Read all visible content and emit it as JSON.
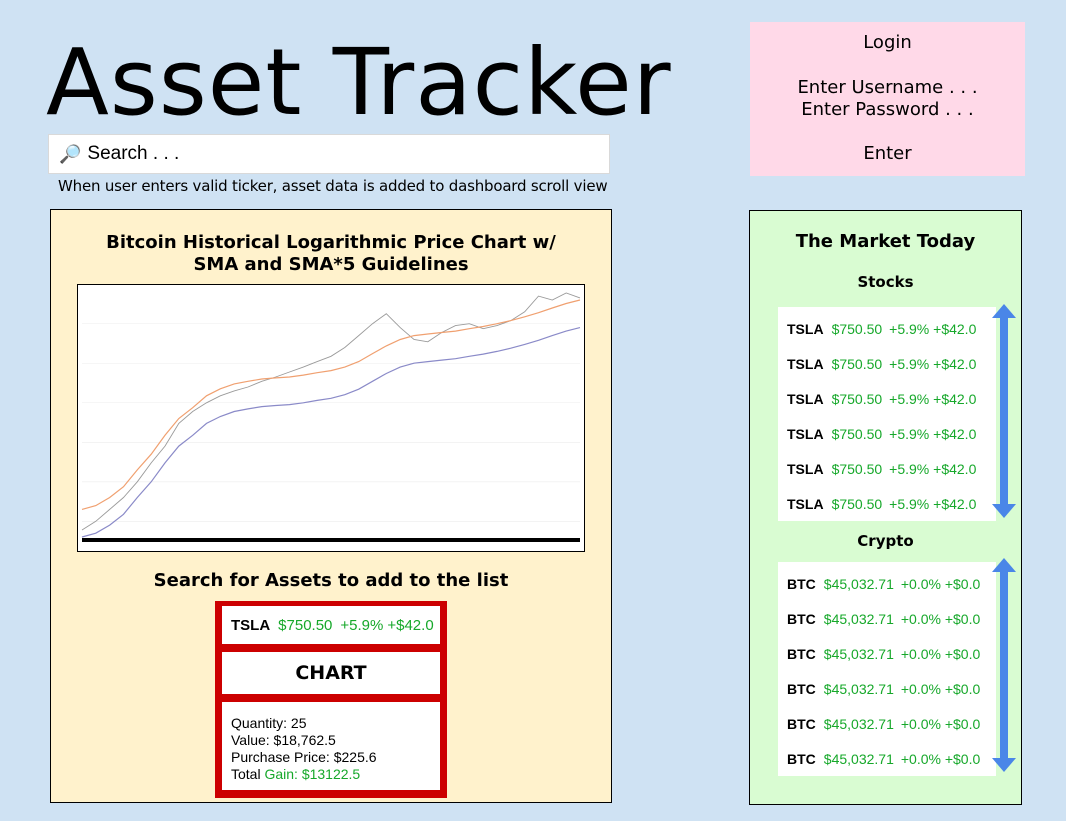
{
  "app": {
    "title": "Asset Tracker"
  },
  "search": {
    "icon": "magnifier-icon",
    "placeholder": "Search . . .",
    "note": "When user enters valid ticker, asset data is added to dashboard scroll view"
  },
  "login": {
    "title": "Login",
    "username_placeholder": "Enter Username . . .",
    "password_placeholder": "Enter Password . . .",
    "enter_label": "Enter"
  },
  "dashboard": {
    "chart_title": "Bitcoin Historical Logarithmic Price Chart w/ SMA and SMA*5 Guidelines",
    "list_title": "Search for Assets to add to the list",
    "asset": {
      "ticker": "TSLA",
      "price": "$750.50",
      "change_pct": "+5.9%",
      "change_abs": "+$42.0",
      "chart_label": "CHART",
      "quantity": "Quantity: 25",
      "value": "Value: $18,762.5",
      "purchase_price": "Purchase Price: $225.6",
      "total_label": "Total ",
      "gain": "Gain: $13122.5"
    }
  },
  "market": {
    "title": "The Market Today",
    "stocks_title": "Stocks",
    "crypto_title": "Crypto",
    "stocks": [
      {
        "ticker": "TSLA",
        "price": "$750.50",
        "change": "+5.9% +$42.0"
      },
      {
        "ticker": "TSLA",
        "price": "$750.50",
        "change": "+5.9% +$42.0"
      },
      {
        "ticker": "TSLA",
        "price": "$750.50",
        "change": "+5.9% +$42.0"
      },
      {
        "ticker": "TSLA",
        "price": "$750.50",
        "change": "+5.9% +$42.0"
      },
      {
        "ticker": "TSLA",
        "price": "$750.50",
        "change": "+5.9% +$42.0"
      },
      {
        "ticker": "TSLA",
        "price": "$750.50",
        "change": "+5.9% +$42.0"
      }
    ],
    "crypto": [
      {
        "ticker": "BTC",
        "price": "$45,032.71",
        "change": "+0.0% +$0.0"
      },
      {
        "ticker": "BTC",
        "price": "$45,032.71",
        "change": "+0.0% +$0.0"
      },
      {
        "ticker": "BTC",
        "price": "$45,032.71",
        "change": "+0.0% +$0.0"
      },
      {
        "ticker": "BTC",
        "price": "$45,032.71",
        "change": "+0.0% +$0.0"
      },
      {
        "ticker": "BTC",
        "price": "$45,032.71",
        "change": "+0.0% +$0.0"
      },
      {
        "ticker": "BTC",
        "price": "$45,032.71",
        "change": "+0.0% +$0.0"
      }
    ]
  },
  "colors": {
    "page_bg": "#cfe2f3",
    "login_bg": "#ffd9e8",
    "dashboard_bg": "#fff2cc",
    "market_bg": "#d9fcd2",
    "card_border": "#cc0000",
    "gain_green": "#16a82a",
    "scroll_arrow": "#4a86e8",
    "price_line": "#9a9a9a",
    "sma_line": "#8a8ac8",
    "sma5_line": "#f0a070"
  },
  "chart_data": {
    "type": "line",
    "title": "",
    "xlabel": "",
    "ylabel": "",
    "y_scale": "log",
    "grid": true,
    "series": [
      {
        "values": [
          0.06,
          0.1,
          0.2,
          0.4,
          1,
          3,
          8,
          30,
          60,
          100,
          150,
          200,
          250,
          350,
          450,
          600,
          800,
          1100,
          1500,
          2500,
          5000,
          10000,
          18000,
          8000,
          4000,
          3500,
          6000,
          9000,
          10000,
          7500,
          9000,
          12000,
          20000,
          50000,
          40000,
          60000,
          45000
        ]
      },
      {
        "values": [
          0.04,
          0.05,
          0.08,
          0.15,
          0.4,
          1,
          3,
          8,
          15,
          30,
          45,
          60,
          70,
          80,
          85,
          90,
          100,
          115,
          130,
          160,
          220,
          350,
          550,
          800,
          1000,
          1100,
          1200,
          1300,
          1500,
          1700,
          2000,
          2400,
          3000,
          3800,
          5000,
          6500,
          8000
        ]
      },
      {
        "values": [
          0.2,
          0.25,
          0.4,
          0.75,
          2,
          5,
          15,
          40,
          75,
          150,
          225,
          300,
          350,
          400,
          425,
          450,
          500,
          575,
          650,
          800,
          1100,
          1750,
          2750,
          4000,
          5000,
          5500,
          6000,
          6500,
          7500,
          8500,
          10000,
          12000,
          15000,
          19000,
          25000,
          32500,
          40000
        ]
      }
    ]
  }
}
